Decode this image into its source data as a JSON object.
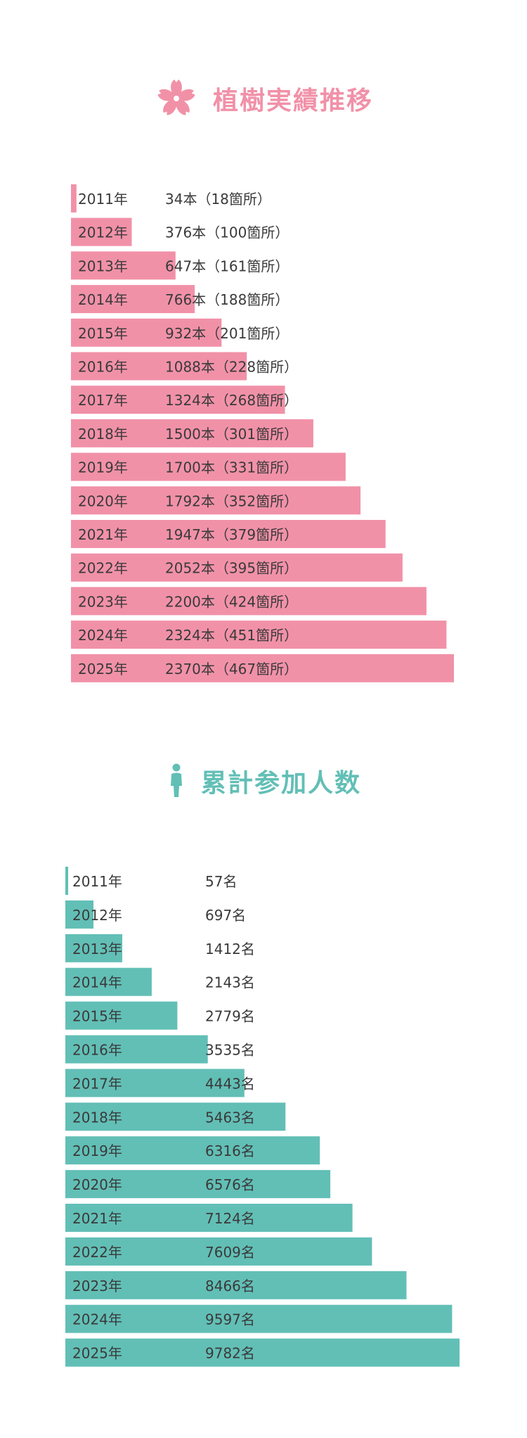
{
  "colors": {
    "trees": "#f191a8",
    "people": "#62bfb6",
    "text": "#3a3a3a"
  },
  "trees_section": {
    "title": "植樹実績推移",
    "icon": "sakura-flower-icon"
  },
  "participants_section": {
    "title": "累計参加人数",
    "icon": "person-icon"
  },
  "chart_data": [
    {
      "type": "bar",
      "orientation": "horizontal",
      "categories": [
        "2011年",
        "2012年",
        "2013年",
        "2014年",
        "2015年",
        "2016年",
        "2017年",
        "2018年",
        "2019年",
        "2020年",
        "2021年",
        "2022年",
        "2023年",
        "2024年",
        "2025年"
      ],
      "values": [
        34,
        376,
        647,
        766,
        932,
        1088,
        1324,
        1500,
        1700,
        1792,
        1947,
        2052,
        2200,
        2324,
        2370
      ],
      "sites": [
        18,
        100,
        161,
        188,
        201,
        228,
        268,
        301,
        331,
        352,
        379,
        395,
        424,
        451,
        467
      ],
      "labels": [
        "34本（18箇所）",
        "376本（100箇所）",
        "647本（161箇所）",
        "766本（188箇所）",
        "932本（201箇所）",
        "1088本（228箇所）",
        "1324本（268箇所）",
        "1500本（301箇所）",
        "1700本（331箇所）",
        "1792本（352箇所）",
        "1947本（379箇所）",
        "2052本（395箇所）",
        "2200本（424箇所）",
        "2324本（451箇所）",
        "2370本（467箇所）"
      ],
      "color": "#f191a8"
    },
    {
      "type": "bar",
      "orientation": "horizontal",
      "categories": [
        "2011年",
        "2012年",
        "2013年",
        "2014年",
        "2015年",
        "2016年",
        "2017年",
        "2018年",
        "2019年",
        "2020年",
        "2021年",
        "2022年",
        "2023年",
        "2024年",
        "2025年"
      ],
      "values": [
        57,
        697,
        1412,
        2143,
        2779,
        3535,
        4443,
        5463,
        6316,
        6576,
        7124,
        7609,
        8466,
        9597,
        9782
      ],
      "labels": [
        "57名",
        "697名",
        "1412名",
        "2143名",
        "2779名",
        "3535名",
        "4443名",
        "5463名",
        "6316名",
        "6576名",
        "7124名",
        "7609名",
        "8466名",
        "9597名",
        "9782名"
      ],
      "color": "#62bfb6"
    }
  ]
}
